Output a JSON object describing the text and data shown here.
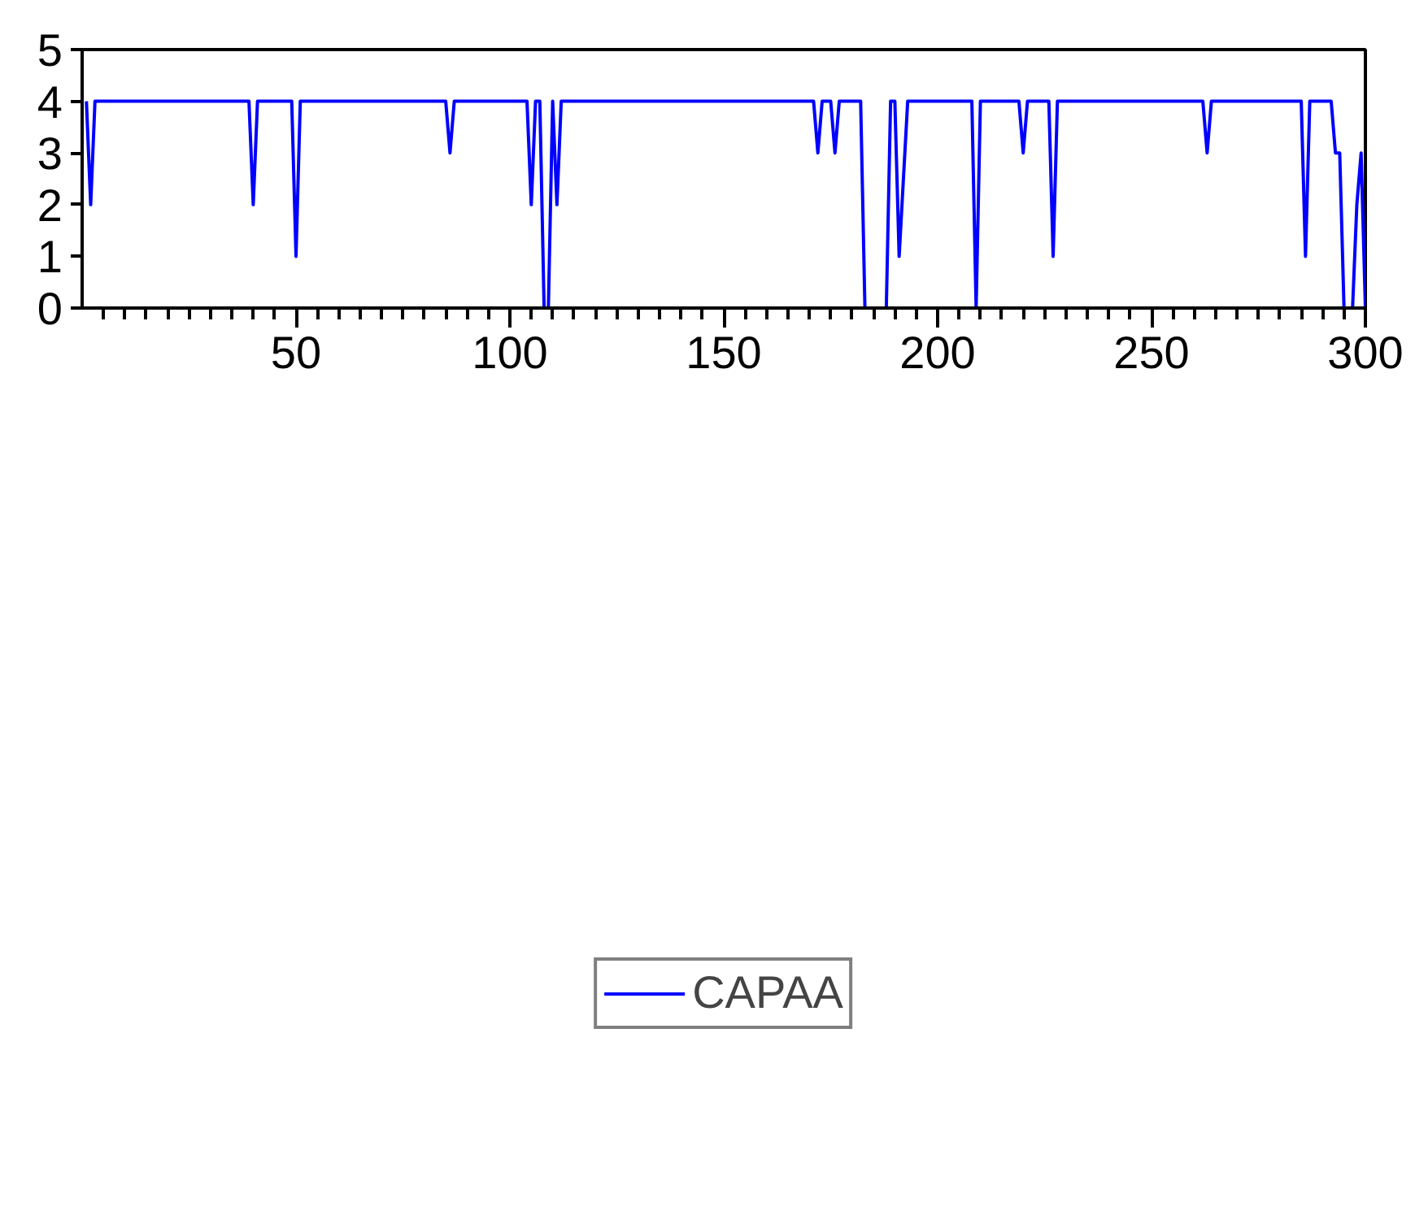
{
  "chart_data": {
    "type": "line",
    "xlim": [
      0,
      300
    ],
    "ylim": [
      0,
      5
    ],
    "xticks": [
      {
        "value": 5,
        "label": null
      },
      {
        "value": 10,
        "label": null
      },
      {
        "value": 15,
        "label": null
      },
      {
        "value": 20,
        "label": null
      },
      {
        "value": 25,
        "label": null
      },
      {
        "value": 30,
        "label": null
      },
      {
        "value": 35,
        "label": null
      },
      {
        "value": 40,
        "label": null
      },
      {
        "value": 45,
        "label": null
      },
      50,
      {
        "value": 55,
        "label": null
      },
      {
        "value": 60,
        "label": null
      },
      {
        "value": 65,
        "label": null
      },
      {
        "value": 70,
        "label": null
      },
      {
        "value": 75,
        "label": null
      },
      {
        "value": 80,
        "label": null
      },
      {
        "value": 85,
        "label": null
      },
      {
        "value": 90,
        "label": null
      },
      {
        "value": 95,
        "label": null
      },
      100,
      {
        "value": 105,
        "label": null
      },
      {
        "value": 110,
        "label": null
      },
      {
        "value": 115,
        "label": null
      },
      {
        "value": 120,
        "label": null
      },
      {
        "value": 125,
        "label": null
      },
      {
        "value": 130,
        "label": null
      },
      {
        "value": 135,
        "label": null
      },
      {
        "value": 140,
        "label": null
      },
      {
        "value": 145,
        "label": null
      },
      150,
      {
        "value": 155,
        "label": null
      },
      {
        "value": 160,
        "label": null
      },
      {
        "value": 165,
        "label": null
      },
      {
        "value": 170,
        "label": null
      },
      {
        "value": 175,
        "label": null
      },
      {
        "value": 180,
        "label": null
      },
      {
        "value": 185,
        "label": null
      },
      {
        "value": 190,
        "label": null
      },
      {
        "value": 195,
        "label": null
      },
      200,
      {
        "value": 205,
        "label": null
      },
      {
        "value": 210,
        "label": null
      },
      {
        "value": 215,
        "label": null
      },
      {
        "value": 220,
        "label": null
      },
      {
        "value": 225,
        "label": null
      },
      {
        "value": 230,
        "label": null
      },
      {
        "value": 235,
        "label": null
      },
      {
        "value": 240,
        "label": null
      },
      {
        "value": 245,
        "label": null
      },
      250,
      {
        "value": 255,
        "label": null
      },
      {
        "value": 260,
        "label": null
      },
      {
        "value": 265,
        "label": null
      },
      {
        "value": 270,
        "label": null
      },
      {
        "value": 275,
        "label": null
      },
      {
        "value": 280,
        "label": null
      },
      {
        "value": 285,
        "label": null
      },
      {
        "value": 290,
        "label": null
      },
      {
        "value": 295,
        "label": null
      },
      300
    ],
    "yticks": [
      0,
      1,
      2,
      3,
      4,
      5
    ],
    "grid": false,
    "legend": "bottom",
    "line_style": "solid",
    "series": [
      {
        "name": "CAPAA",
        "color": "#0000ff",
        "x": [
          1,
          2,
          3,
          39,
          40,
          41,
          49,
          50,
          51,
          85,
          86,
          87,
          104,
          105,
          106,
          107,
          108,
          109,
          110,
          111,
          112,
          171,
          172,
          173,
          175,
          176,
          177,
          182,
          183,
          188,
          189,
          190,
          191,
          193,
          208,
          209,
          210,
          219,
          220,
          221,
          226,
          227,
          228,
          262,
          263,
          264,
          285,
          286,
          287,
          292,
          293,
          294,
          295,
          297,
          298,
          299,
          300
        ],
        "values": [
          4,
          2,
          4,
          4,
          2,
          4,
          4,
          1,
          4,
          4,
          3,
          4,
          4,
          2,
          4,
          4,
          0,
          0,
          4,
          2,
          4,
          4,
          3,
          4,
          4,
          3,
          4,
          4,
          0,
          0,
          4,
          4,
          1,
          4,
          4,
          0,
          4,
          4,
          3,
          4,
          4,
          1,
          4,
          4,
          3,
          4,
          4,
          1,
          4,
          4,
          3,
          3,
          0,
          0,
          2,
          3,
          0
        ]
      }
    ]
  }
}
